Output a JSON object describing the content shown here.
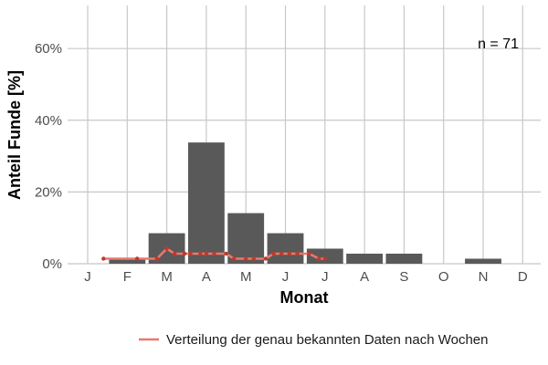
{
  "chart_data": {
    "type": "bar",
    "xlabel": "Monat",
    "ylabel": "Anteil Funde [%]",
    "categories": [
      "J",
      "F",
      "M",
      "A",
      "M",
      "J",
      "J",
      "A",
      "S",
      "O",
      "N",
      "D"
    ],
    "yticks": [
      "0%",
      "20%",
      "40%",
      "60%"
    ],
    "ytick_values": [
      0,
      20,
      40,
      60
    ],
    "ylim": [
      0,
      72
    ],
    "grid": true,
    "bar_color": "#595959",
    "bar_values": [
      0,
      1.4,
      8.5,
      33.8,
      14.1,
      8.5,
      4.2,
      2.8,
      2.8,
      0,
      1.4,
      0
    ],
    "annotation": "n = 71",
    "series": [
      {
        "name": "Verteilung der genau bekannten Daten nach Wochen",
        "color": "#e8796e",
        "type": "line",
        "x": [
          1.4,
          2.25,
          2.75,
          3.0,
          3.2,
          3.45,
          3.6,
          3.85,
          4.0,
          4.2,
          4.5,
          4.7,
          5.0,
          5.2,
          5.5,
          5.7,
          5.9,
          6.1,
          6.3,
          6.6,
          6.85,
          7.0
        ],
        "values": [
          1.4,
          1.4,
          1.4,
          4.2,
          2.8,
          2.8,
          2.8,
          2.8,
          2.8,
          2.8,
          2.8,
          1.4,
          1.4,
          1.4,
          1.4,
          2.8,
          2.8,
          2.8,
          2.8,
          2.8,
          1.4,
          1.4
        ]
      }
    ]
  }
}
